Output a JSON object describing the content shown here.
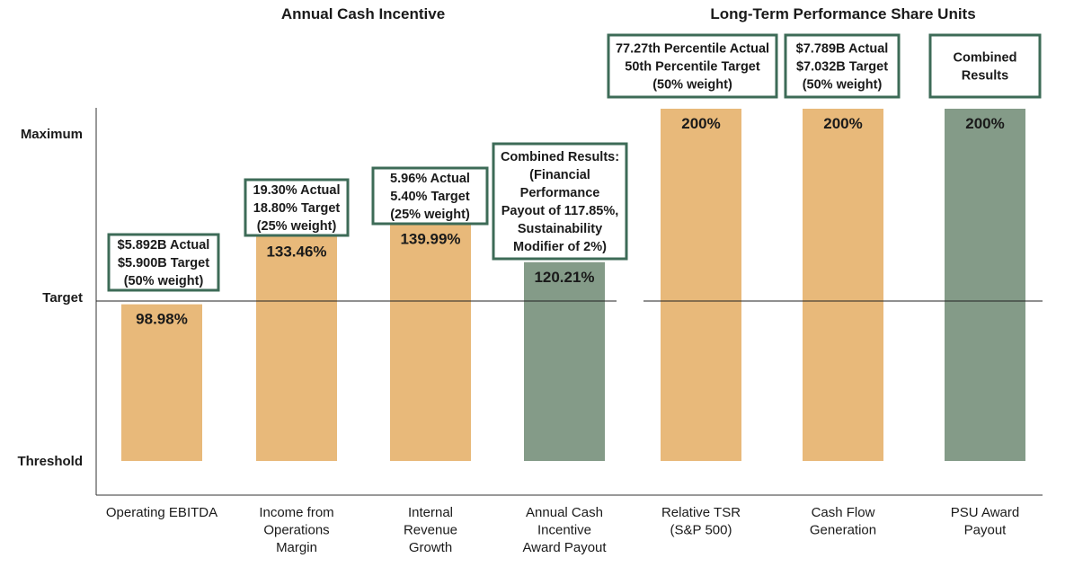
{
  "chart_data": {
    "type": "bar",
    "groups": [
      {
        "title": "Annual Cash Incentive"
      },
      {
        "title": "Long-Term Performance Share Units"
      }
    ],
    "y_levels": [
      "Threshold",
      "Target",
      "Maximum"
    ],
    "bars": [
      {
        "category": [
          "Operating EBITDA"
        ],
        "value": 98.98,
        "label": "98.98%",
        "color": "#e8b97a",
        "annotation": [
          "$5.892B Actual",
          "$5.900B Target",
          "(50% weight)"
        ]
      },
      {
        "category": [
          "Income from",
          "Operations",
          "Margin"
        ],
        "value": 133.46,
        "label": "133.46%",
        "color": "#e8b97a",
        "annotation": [
          "19.30% Actual",
          "18.80% Target",
          "(25% weight)"
        ]
      },
      {
        "category": [
          "Internal",
          "Revenue",
          "Growth"
        ],
        "value": 139.99,
        "label": "139.99%",
        "color": "#e8b97a",
        "annotation": [
          "5.96% Actual",
          "5.40% Target",
          "(25% weight)"
        ]
      },
      {
        "category": [
          "Annual Cash",
          "Incentive",
          "Award Payout"
        ],
        "value": 120.21,
        "label": "120.21%",
        "color": "#849b88",
        "annotation": [
          "Combined Results:",
          "(Financial",
          "Performance",
          "Payout of 117.85%,",
          "Sustainability",
          "Modifier of 2%)"
        ]
      },
      {
        "category": [
          "Relative TSR",
          "(S&P 500)"
        ],
        "value": 200,
        "label": "200%",
        "color": "#e8b97a",
        "annotation": [
          "77.27th Percentile Actual",
          "50th Percentile Target",
          "(50% weight)"
        ]
      },
      {
        "category": [
          "Cash Flow",
          "Generation"
        ],
        "value": 200,
        "label": "200%",
        "color": "#e8b97a",
        "annotation": [
          "$7.789B Actual",
          "$7.032B Target",
          "(50% weight)"
        ]
      },
      {
        "category": [
          "PSU Award",
          "Payout"
        ],
        "value": 200,
        "label": "200%",
        "color": "#849b88",
        "annotation": [
          "Combined",
          "Results"
        ]
      }
    ],
    "colors": {
      "incentive": "#e8b97a",
      "combined": "#849b88",
      "box_border": "#3d6b57"
    }
  }
}
